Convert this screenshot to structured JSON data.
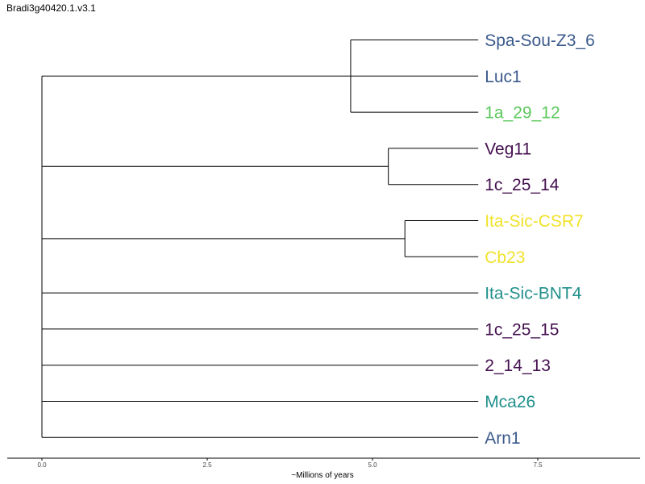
{
  "title": "Bradi3g40420.1.v3.1",
  "colors": {
    "navy": "#3b5a8c",
    "green": "#5cc85c",
    "purple": "#44104f",
    "yellow": "#f1e22a",
    "teal": "#21908c"
  },
  "axis": {
    "label": "~Millions of years",
    "ticks": [
      "0.0",
      "2.5",
      "5.0",
      "7.5"
    ],
    "tick_values": [
      0,
      2.5,
      5.0,
      7.5
    ],
    "range": [
      0,
      9
    ]
  },
  "tree": {
    "leaves": [
      {
        "name": "Spa-Sou-Z3_6",
        "color": "navy"
      },
      {
        "name": "Luc1",
        "color": "navy"
      },
      {
        "name": "1a_29_12",
        "color": "green"
      },
      {
        "name": "Veg11",
        "color": "purple"
      },
      {
        "name": "1c_25_14",
        "color": "purple"
      },
      {
        "name": "Ita-Sic-CSR7",
        "color": "yellow"
      },
      {
        "name": "Cb23",
        "color": "yellow"
      },
      {
        "name": "Ita-Sic-BNT4",
        "color": "teal"
      },
      {
        "name": "1c_25_15",
        "color": "purple"
      },
      {
        "name": "2_14_13",
        "color": "purple"
      },
      {
        "name": "Mca26",
        "color": "teal"
      },
      {
        "name": "Arn1",
        "color": "navy"
      }
    ],
    "root_x": 0,
    "leaf_x": 6.6,
    "clades": [
      {
        "node_x": 4.67,
        "members": [
          0,
          1,
          2
        ]
      },
      {
        "node_x": 5.24,
        "members": [
          3,
          4
        ]
      },
      {
        "node_x": 5.49,
        "members": [
          5,
          6
        ]
      },
      {
        "node_x": 0,
        "members": [
          7
        ]
      },
      {
        "node_x": 0,
        "members": [
          8
        ]
      },
      {
        "node_x": 0,
        "members": [
          9
        ]
      },
      {
        "node_x": 0,
        "members": [
          10
        ]
      },
      {
        "node_x": 0,
        "members": [
          11
        ]
      }
    ]
  }
}
